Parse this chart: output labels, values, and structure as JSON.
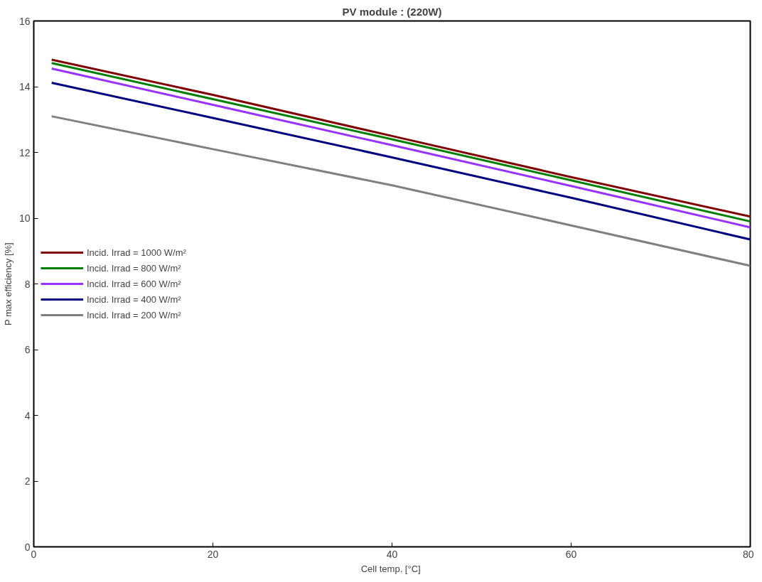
{
  "chart_data": {
    "type": "line",
    "title": "PV module : (220W)",
    "xlabel": "Cell temp.  [°C]",
    "ylabel": "P max efficiency [%]",
    "x": [
      2,
      20,
      40,
      60,
      80
    ],
    "series": [
      {
        "name": "Incid. Irrad = 1000 W/m²",
        "color": "#800000",
        "values": [
          14.82,
          13.75,
          12.5,
          11.25,
          10.05
        ]
      },
      {
        "name": "Incid. Irrad = 800 W/m²",
        "color": "#008000",
        "values": [
          14.72,
          13.62,
          12.4,
          11.15,
          9.9
        ]
      },
      {
        "name": "Incid. Irrad = 600 W/m²",
        "color": "#9933ff",
        "values": [
          14.55,
          13.45,
          12.22,
          10.98,
          9.72
        ]
      },
      {
        "name": "Incid. Irrad = 400 W/m²",
        "color": "#000080",
        "values": [
          14.12,
          13.05,
          11.85,
          10.62,
          9.35
        ]
      },
      {
        "name": "Incid. Irrad = 200 W/m²",
        "color": "#808080",
        "values": [
          13.1,
          12.1,
          11.0,
          9.78,
          8.55
        ]
      }
    ],
    "xlim": [
      0,
      80
    ],
    "ylim": [
      0,
      16
    ],
    "xticks": [
      0,
      20,
      40,
      60,
      80
    ],
    "yticks": [
      0,
      2,
      4,
      6,
      8,
      10,
      12,
      14,
      16
    ],
    "grid": false,
    "legend": "left",
    "marker": "none",
    "line_style": "solid"
  }
}
